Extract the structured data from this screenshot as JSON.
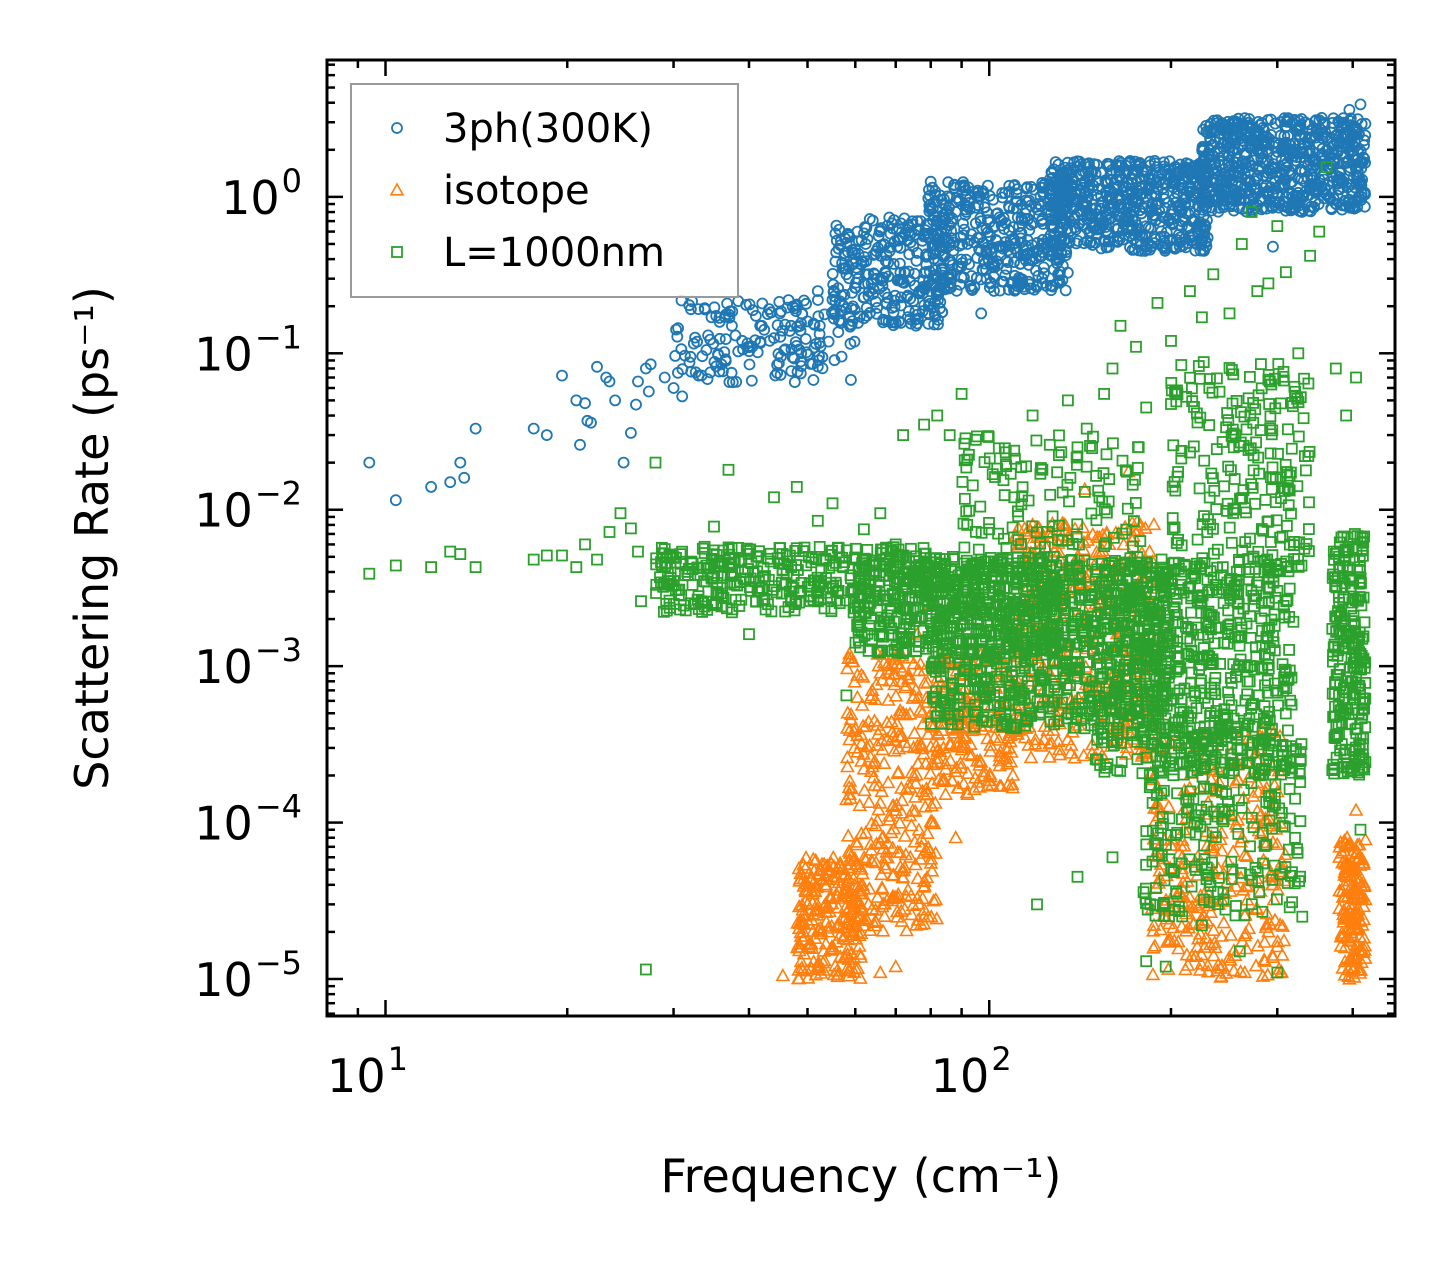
{
  "chart_data": {
    "type": "scatter",
    "title": "",
    "xlabel": "Frequency (cm⁻¹)",
    "ylabel": "Scattering Rate (ps⁻¹)",
    "xscale": "log",
    "yscale": "log",
    "xlim": [
      8.0,
      470.0
    ],
    "ylim": [
      5.8e-06,
      7.5
    ],
    "x_ticks": [
      {
        "value": 10,
        "label_base": "10",
        "label_exp": "1"
      },
      {
        "value": 100,
        "label_base": "10",
        "label_exp": "2"
      }
    ],
    "y_ticks": [
      {
        "value": 1,
        "label_base": "10",
        "label_exp": "0"
      },
      {
        "value": 0.1,
        "label_base": "10",
        "label_exp": "−1"
      },
      {
        "value": 0.01,
        "label_base": "10",
        "label_exp": "−2"
      },
      {
        "value": 0.001,
        "label_base": "10",
        "label_exp": "−3"
      },
      {
        "value": 0.0001,
        "label_base": "10",
        "label_exp": "−4"
      },
      {
        "value": 1e-05,
        "label_base": "10",
        "label_exp": "−5"
      }
    ],
    "legend_position": "top-left",
    "grid": false,
    "series": [
      {
        "name": "3ph(300K)",
        "marker": "circle",
        "color": "#1f77b4",
        "points": [
          [
            9.4,
            0.02
          ],
          [
            10.4,
            0.0115
          ],
          [
            11.9,
            0.014
          ],
          [
            12.8,
            0.015
          ],
          [
            13.3,
            0.02
          ],
          [
            13.5,
            0.016
          ],
          [
            14.1,
            0.033
          ],
          [
            17.6,
            0.033
          ],
          [
            18.5,
            0.03
          ],
          [
            19.6,
            0.072
          ],
          [
            20.7,
            0.05
          ],
          [
            21.0,
            0.026
          ],
          [
            21.4,
            0.048
          ],
          [
            21.6,
            0.037
          ],
          [
            21.9,
            0.036
          ],
          [
            22.4,
            0.082
          ],
          [
            23.2,
            0.07
          ],
          [
            23.5,
            0.066
          ],
          [
            24.0,
            0.05
          ],
          [
            24.8,
            0.02
          ],
          [
            25.5,
            0.031
          ],
          [
            26.0,
            0.047
          ],
          [
            26.2,
            0.066
          ],
          [
            27.0,
            0.08
          ],
          [
            27.3,
            0.057
          ],
          [
            27.5,
            0.085
          ],
          [
            29.0,
            0.07
          ],
          [
            30.0,
            0.06
          ],
          [
            30.5,
            0.075
          ],
          [
            31.0,
            0.053
          ],
          [
            32.0,
            0.095
          ],
          [
            33.0,
            0.072
          ],
          [
            34.0,
            0.105
          ],
          [
            36.0,
            0.085
          ],
          [
            38.0,
            0.13
          ],
          [
            40.0,
            0.11
          ],
          [
            42.0,
            0.15
          ],
          [
            44.0,
            0.125
          ],
          [
            45.0,
            0.18
          ],
          [
            47.0,
            0.077
          ],
          [
            48.0,
            0.205
          ],
          [
            50.0,
            0.16
          ],
          [
            52.0,
            0.25
          ],
          [
            55.0,
            0.22
          ],
          [
            58.0,
            0.32
          ],
          [
            62.0,
            0.28
          ],
          [
            65.0,
            0.45
          ],
          [
            68.0,
            0.38
          ],
          [
            72.0,
            0.55
          ],
          [
            76.0,
            0.7
          ],
          [
            80.0,
            1.25
          ],
          [
            84.0,
            0.9
          ],
          [
            88.0,
            0.8
          ],
          [
            92.0,
            0.5
          ],
          [
            97.0,
            0.18
          ],
          [
            102.0,
            0.65
          ],
          [
            108.0,
            0.85
          ],
          [
            115.0,
            0.95
          ],
          [
            122.0,
            0.7
          ],
          [
            130.0,
            0.32
          ],
          [
            136.0,
            1.0
          ],
          [
            142.0,
            1.2
          ],
          [
            150.0,
            1.4
          ],
          [
            158.0,
            1.1
          ],
          [
            166.0,
            1.3
          ],
          [
            175.0,
            1.6
          ],
          [
            185.0,
            1.2
          ],
          [
            195.0,
            1.5
          ],
          [
            205.0,
            1.05
          ],
          [
            215.0,
            0.9
          ],
          [
            225.0,
            1.3
          ],
          [
            240.0,
            1.7
          ],
          [
            255.0,
            1.1
          ],
          [
            270.0,
            1.6
          ],
          [
            285.0,
            2.1
          ],
          [
            295.0,
            0.48
          ],
          [
            305.0,
            1.4
          ],
          [
            320.0,
            1.9
          ],
          [
            340.0,
            2.4
          ],
          [
            360.0,
            2.6
          ],
          [
            380.0,
            3.0
          ],
          [
            395.0,
            3.6
          ],
          [
            405.0,
            2.7
          ],
          [
            412.0,
            3.9
          ],
          [
            418.0,
            2.3
          ]
        ],
        "bands": [
          {
            "x": [
              30,
              60
            ],
            "y": [
              0.065,
              0.22
            ],
            "n": 160
          },
          {
            "x": [
              55,
              85
            ],
            "y": [
              0.15,
              0.75
            ],
            "n": 280
          },
          {
            "x": [
              78,
              135
            ],
            "y": [
              0.25,
              1.25
            ],
            "n": 420
          },
          {
            "x": [
              125,
              230
            ],
            "y": [
              0.45,
              1.7
            ],
            "n": 600
          },
          {
            "x": [
              225,
              420
            ],
            "y": [
              0.8,
              3.2
            ],
            "n": 700
          }
        ]
      },
      {
        "name": "isotope",
        "marker": "triangle",
        "color": "#ff7f0e",
        "points": [
          [
            45.5,
            1.05e-05
          ],
          [
            48.5,
            1.6e-05
          ],
          [
            50.0,
            3e-05
          ],
          [
            52.0,
            1.2e-05
          ],
          [
            54.0,
            5e-05
          ],
          [
            56.0,
            2.2e-05
          ],
          [
            58.0,
            0.00014
          ],
          [
            60.0,
            0.0004
          ],
          [
            62.0,
            0.00022
          ],
          [
            64.0,
            0.0007
          ],
          [
            66.0,
            1.1e-05
          ],
          [
            68.0,
            0.00018
          ],
          [
            70.0,
            1.2e-05
          ],
          [
            72.0,
            0.0005
          ],
          [
            74.0,
            6e-05
          ],
          [
            76.0,
            0.0016
          ],
          [
            78.0,
            2.5e-05
          ],
          [
            80.0,
            0.0025
          ],
          [
            84.0,
            0.0003
          ],
          [
            88.0,
            8e-05
          ],
          [
            92.0,
            0.0006
          ],
          [
            96.0,
            0.0008
          ],
          [
            102.0,
            0.00035
          ],
          [
            108.0,
            0.0015
          ],
          [
            115.0,
            0.0004
          ],
          [
            122.0,
            0.0025
          ],
          [
            130.0,
            0.0011
          ],
          [
            138.0,
            0.0045
          ],
          [
            144.0,
            0.0135
          ],
          [
            150.0,
            0.0025
          ],
          [
            158.0,
            0.006
          ],
          [
            165.0,
            0.0045
          ],
          [
            170.0,
            0.0175
          ],
          [
            178.0,
            0.008
          ],
          [
            190.0,
            0.0005
          ],
          [
            210.0,
            9e-05
          ],
          [
            240.0,
            3e-05
          ],
          [
            265.0,
            1.1e-05
          ],
          [
            290.0,
            2e-05
          ],
          [
            305.0,
            1.1e-05
          ],
          [
            395.0,
            1e-05
          ],
          [
            405.0,
            0.00012
          ]
        ],
        "bands": [
          {
            "x": [
              48,
              62
            ],
            "y": [
              1e-05,
              6e-05
            ],
            "n": 220
          },
          {
            "x": [
              58,
              82
            ],
            "y": [
              2e-05,
              0.0012
            ],
            "n": 320
          },
          {
            "x": [
              82,
              110
            ],
            "y": [
              0.00015,
              0.0012
            ],
            "n": 200
          },
          {
            "x": [
              110,
              190
            ],
            "y": [
              0.00025,
              0.0085
            ],
            "n": 380
          },
          {
            "x": [
              185,
              310
            ],
            "y": [
              1e-05,
              0.0004
            ],
            "n": 300
          },
          {
            "x": [
              380,
              420
            ],
            "y": [
              1e-05,
              8e-05
            ],
            "n": 160
          }
        ]
      },
      {
        "name": "L=1000nm",
        "marker": "square",
        "color": "#2ca02c",
        "points": [
          [
            9.4,
            0.0039
          ],
          [
            10.4,
            0.0044
          ],
          [
            11.9,
            0.0043
          ],
          [
            12.8,
            0.0054
          ],
          [
            13.3,
            0.0052
          ],
          [
            14.1,
            0.0043
          ],
          [
            17.6,
            0.0048
          ],
          [
            18.5,
            0.0051
          ],
          [
            19.6,
            0.0051
          ],
          [
            20.7,
            0.0043
          ],
          [
            21.4,
            0.006
          ],
          [
            22.4,
            0.0048
          ],
          [
            23.5,
            0.0072
          ],
          [
            24.5,
            0.0095
          ],
          [
            25.5,
            0.0076
          ],
          [
            26.2,
            0.0054
          ],
          [
            26.5,
            0.0026
          ],
          [
            27.0,
            1.15e-05
          ],
          [
            28.0,
            0.02
          ],
          [
            29.0,
            0.0056
          ],
          [
            30.0,
            0.0035
          ],
          [
            30.8,
            0.0052
          ],
          [
            33.0,
            0.0028
          ],
          [
            34.0,
            0.0044
          ],
          [
            35.0,
            0.0078
          ],
          [
            37.0,
            0.018
          ],
          [
            40.0,
            0.0016
          ],
          [
            44.0,
            0.012
          ],
          [
            48.0,
            0.014
          ],
          [
            52.0,
            0.0085
          ],
          [
            55.0,
            0.011
          ],
          [
            58.0,
            0.00065
          ],
          [
            62.0,
            0.0075
          ],
          [
            66.0,
            0.0095
          ],
          [
            70.0,
            0.006
          ],
          [
            72.0,
            0.03
          ],
          [
            78.0,
            0.035
          ],
          [
            82.0,
            0.04
          ],
          [
            86.0,
            0.03
          ],
          [
            90.0,
            0.055
          ],
          [
            95.0,
            0.028
          ],
          [
            100.0,
            0.0075
          ],
          [
            110.0,
            0.012
          ],
          [
            118.0,
            0.04
          ],
          [
            126.0,
            0.026
          ],
          [
            135.0,
            0.05
          ],
          [
            145.0,
            0.033
          ],
          [
            155.0,
            0.055
          ],
          [
            160.0,
            0.08
          ],
          [
            165.0,
            0.15
          ],
          [
            175.0,
            0.11
          ],
          [
            182.0,
            0.045
          ],
          [
            190.0,
            0.21
          ],
          [
            200.0,
            0.12
          ],
          [
            215.0,
            0.25
          ],
          [
            225.0,
            0.17
          ],
          [
            235.0,
            0.32
          ],
          [
            250.0,
            0.18
          ],
          [
            262.0,
            0.5
          ],
          [
            272.0,
            0.8
          ],
          [
            278.0,
            0.25
          ],
          [
            290.0,
            0.28
          ],
          [
            300.0,
            0.65
          ],
          [
            310.0,
            0.33
          ],
          [
            325.0,
            0.1
          ],
          [
            340.0,
            0.42
          ],
          [
            352.0,
            0.6
          ],
          [
            362.0,
            1.55
          ],
          [
            375.0,
            0.08
          ],
          [
            390.0,
            0.04
          ],
          [
            405.0,
            0.07
          ],
          [
            412.0,
            0.0012
          ],
          [
            120.0,
            3e-05
          ],
          [
            140.0,
            4.5e-05
          ],
          [
            160.0,
            6e-05
          ],
          [
            182.0,
            1.3e-05
          ],
          [
            196.0,
            1.2e-05
          ],
          [
            225.0,
            2.2e-05
          ],
          [
            260.0,
            1.5e-05
          ],
          [
            300.0,
            1.1e-05
          ],
          [
            330.0,
            2.5e-05
          ],
          [
            412.0,
            9e-05
          ]
        ],
        "bands": [
          {
            "x": [
              28,
              80
            ],
            "y": [
              0.0022,
              0.0058
            ],
            "n": 380
          },
          {
            "x": [
              60,
              130
            ],
            "y": [
              0.0012,
              0.005
            ],
            "n": 420
          },
          {
            "x": [
              80,
              200
            ],
            "y": [
              0.0004,
              0.005
            ],
            "n": 800
          },
          {
            "x": [
              150,
              320
            ],
            "y": [
              0.0002,
              0.005
            ],
            "n": 700
          },
          {
            "x": [
              180,
              330
            ],
            "y": [
              2.5e-05,
              0.00035
            ],
            "n": 220
          },
          {
            "x": [
              200,
              340
            ],
            "y": [
              0.004,
              0.09
            ],
            "n": 220
          },
          {
            "x": [
              370,
              420
            ],
            "y": [
              0.0002,
              0.007
            ],
            "n": 250
          },
          {
            "x": [
              90,
              180
            ],
            "y": [
              0.005,
              0.03
            ],
            "n": 120
          }
        ]
      }
    ]
  }
}
